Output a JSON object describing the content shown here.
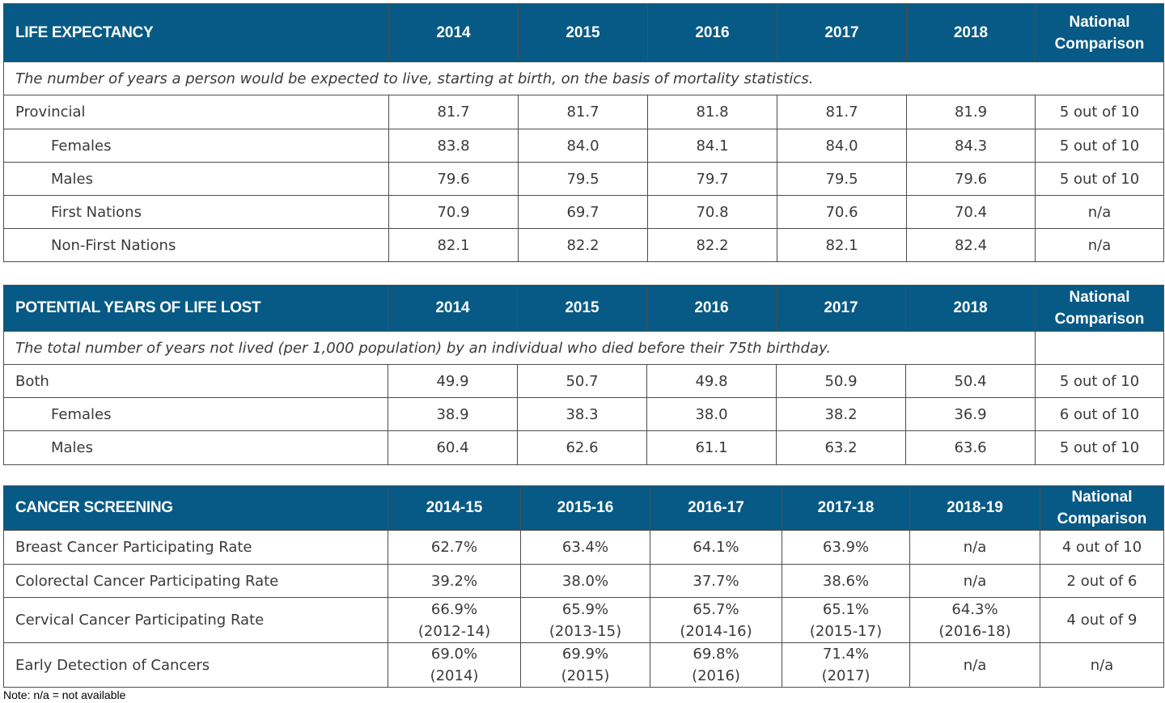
{
  "life_expectancy": {
    "header": [
      "LIFE EXPECTANCY",
      "2014",
      "2015",
      "2016",
      "2017",
      "2018"
    ],
    "national_comparison_header": [
      "National",
      "Comparison"
    ],
    "description": "The number of years a person would be expected to live, starting at birth, on the basis of mortality statistics.",
    "rows": [
      {
        "label": "Provincial",
        "values": [
          "81.7",
          "81.7",
          "81.8",
          "81.7",
          "81.9",
          "5 out of 10"
        ]
      },
      {
        "label": "Females",
        "values": [
          "83.8",
          "84.0",
          "84.1",
          "84.0",
          "84.3",
          "5 out of 10"
        ]
      },
      {
        "label": "Males",
        "values": [
          "79.6",
          "79.5",
          "79.7",
          "79.5",
          "79.6",
          "5 out of 10"
        ]
      },
      {
        "label": "First Nations",
        "values": [
          "70.9",
          "69.7",
          "70.8",
          "70.6",
          "70.4",
          "n/a"
        ]
      },
      {
        "label": "Non-First Nations",
        "values": [
          "82.1",
          "82.2",
          "82.2",
          "82.1",
          "82.4",
          "n/a"
        ]
      }
    ]
  },
  "potential_years": {
    "header": [
      "POTENTIAL YEARS OF LIFE LOST",
      "2014",
      "2015",
      "2016",
      "2017",
      "2018"
    ],
    "national_comparison_header": [
      "National",
      "Comparison"
    ],
    "description": "The total number of years not lived (per 1,000 population) by an individual who died before their 75th birthday.",
    "rows": [
      {
        "label": "Both",
        "values": [
          "49.9",
          "50.7",
          "49.8",
          "50.9",
          "50.4",
          "5 out of 10"
        ]
      },
      {
        "label": "Females",
        "values": [
          "38.9",
          "38.3",
          "38.0",
          "38.2",
          "36.9",
          "6 out of 10"
        ]
      },
      {
        "label": "Males",
        "values": [
          "60.4",
          "62.6",
          "61.1",
          "63.2",
          "63.6",
          "5 out of 10"
        ]
      }
    ]
  },
  "cancer_screening": {
    "header": [
      "CANCER SCREENING",
      "2014-15",
      "2015-16",
      "2016-17",
      "2017-18",
      "2018-19"
    ],
    "national_comparison_header": [
      "National",
      "Comparison"
    ],
    "rows": [
      {
        "label": "Breast Cancer Participating Rate",
        "values": [
          [
            "62.7%"
          ],
          [
            "63.4%"
          ],
          [
            "64.1%"
          ],
          [
            "63.9%"
          ],
          [
            "n/a"
          ],
          [
            "4 out of 10"
          ]
        ]
      },
      {
        "label": "Colorectal Cancer Participating Rate",
        "values": [
          [
            "39.2%"
          ],
          [
            "38.0%"
          ],
          [
            "37.7%"
          ],
          [
            "38.6%"
          ],
          [
            "n/a"
          ],
          [
            "2 out of 6"
          ]
        ]
      },
      {
        "label": "Cervical Cancer Participating Rate",
        "values": [
          [
            "66.9%",
            "(2012-14)"
          ],
          [
            "65.9%",
            "(2013-15)"
          ],
          [
            "65.7%",
            "(2014-16)"
          ],
          [
            "65.1%",
            "(2015-17)"
          ],
          [
            "64.3%",
            "(2016-18)"
          ],
          [
            "4 out of 9"
          ]
        ]
      },
      {
        "label": "Early Detection of Cancers",
        "values": [
          [
            "69.0%",
            "(2014)"
          ],
          [
            "69.9%",
            "(2015)"
          ],
          [
            "69.8%",
            "(2016)"
          ],
          [
            "71.4%",
            "(2017)"
          ],
          [
            "n/a"
          ],
          [
            "n/a"
          ]
        ]
      }
    ]
  },
  "note": "Note: n/a = not available"
}
